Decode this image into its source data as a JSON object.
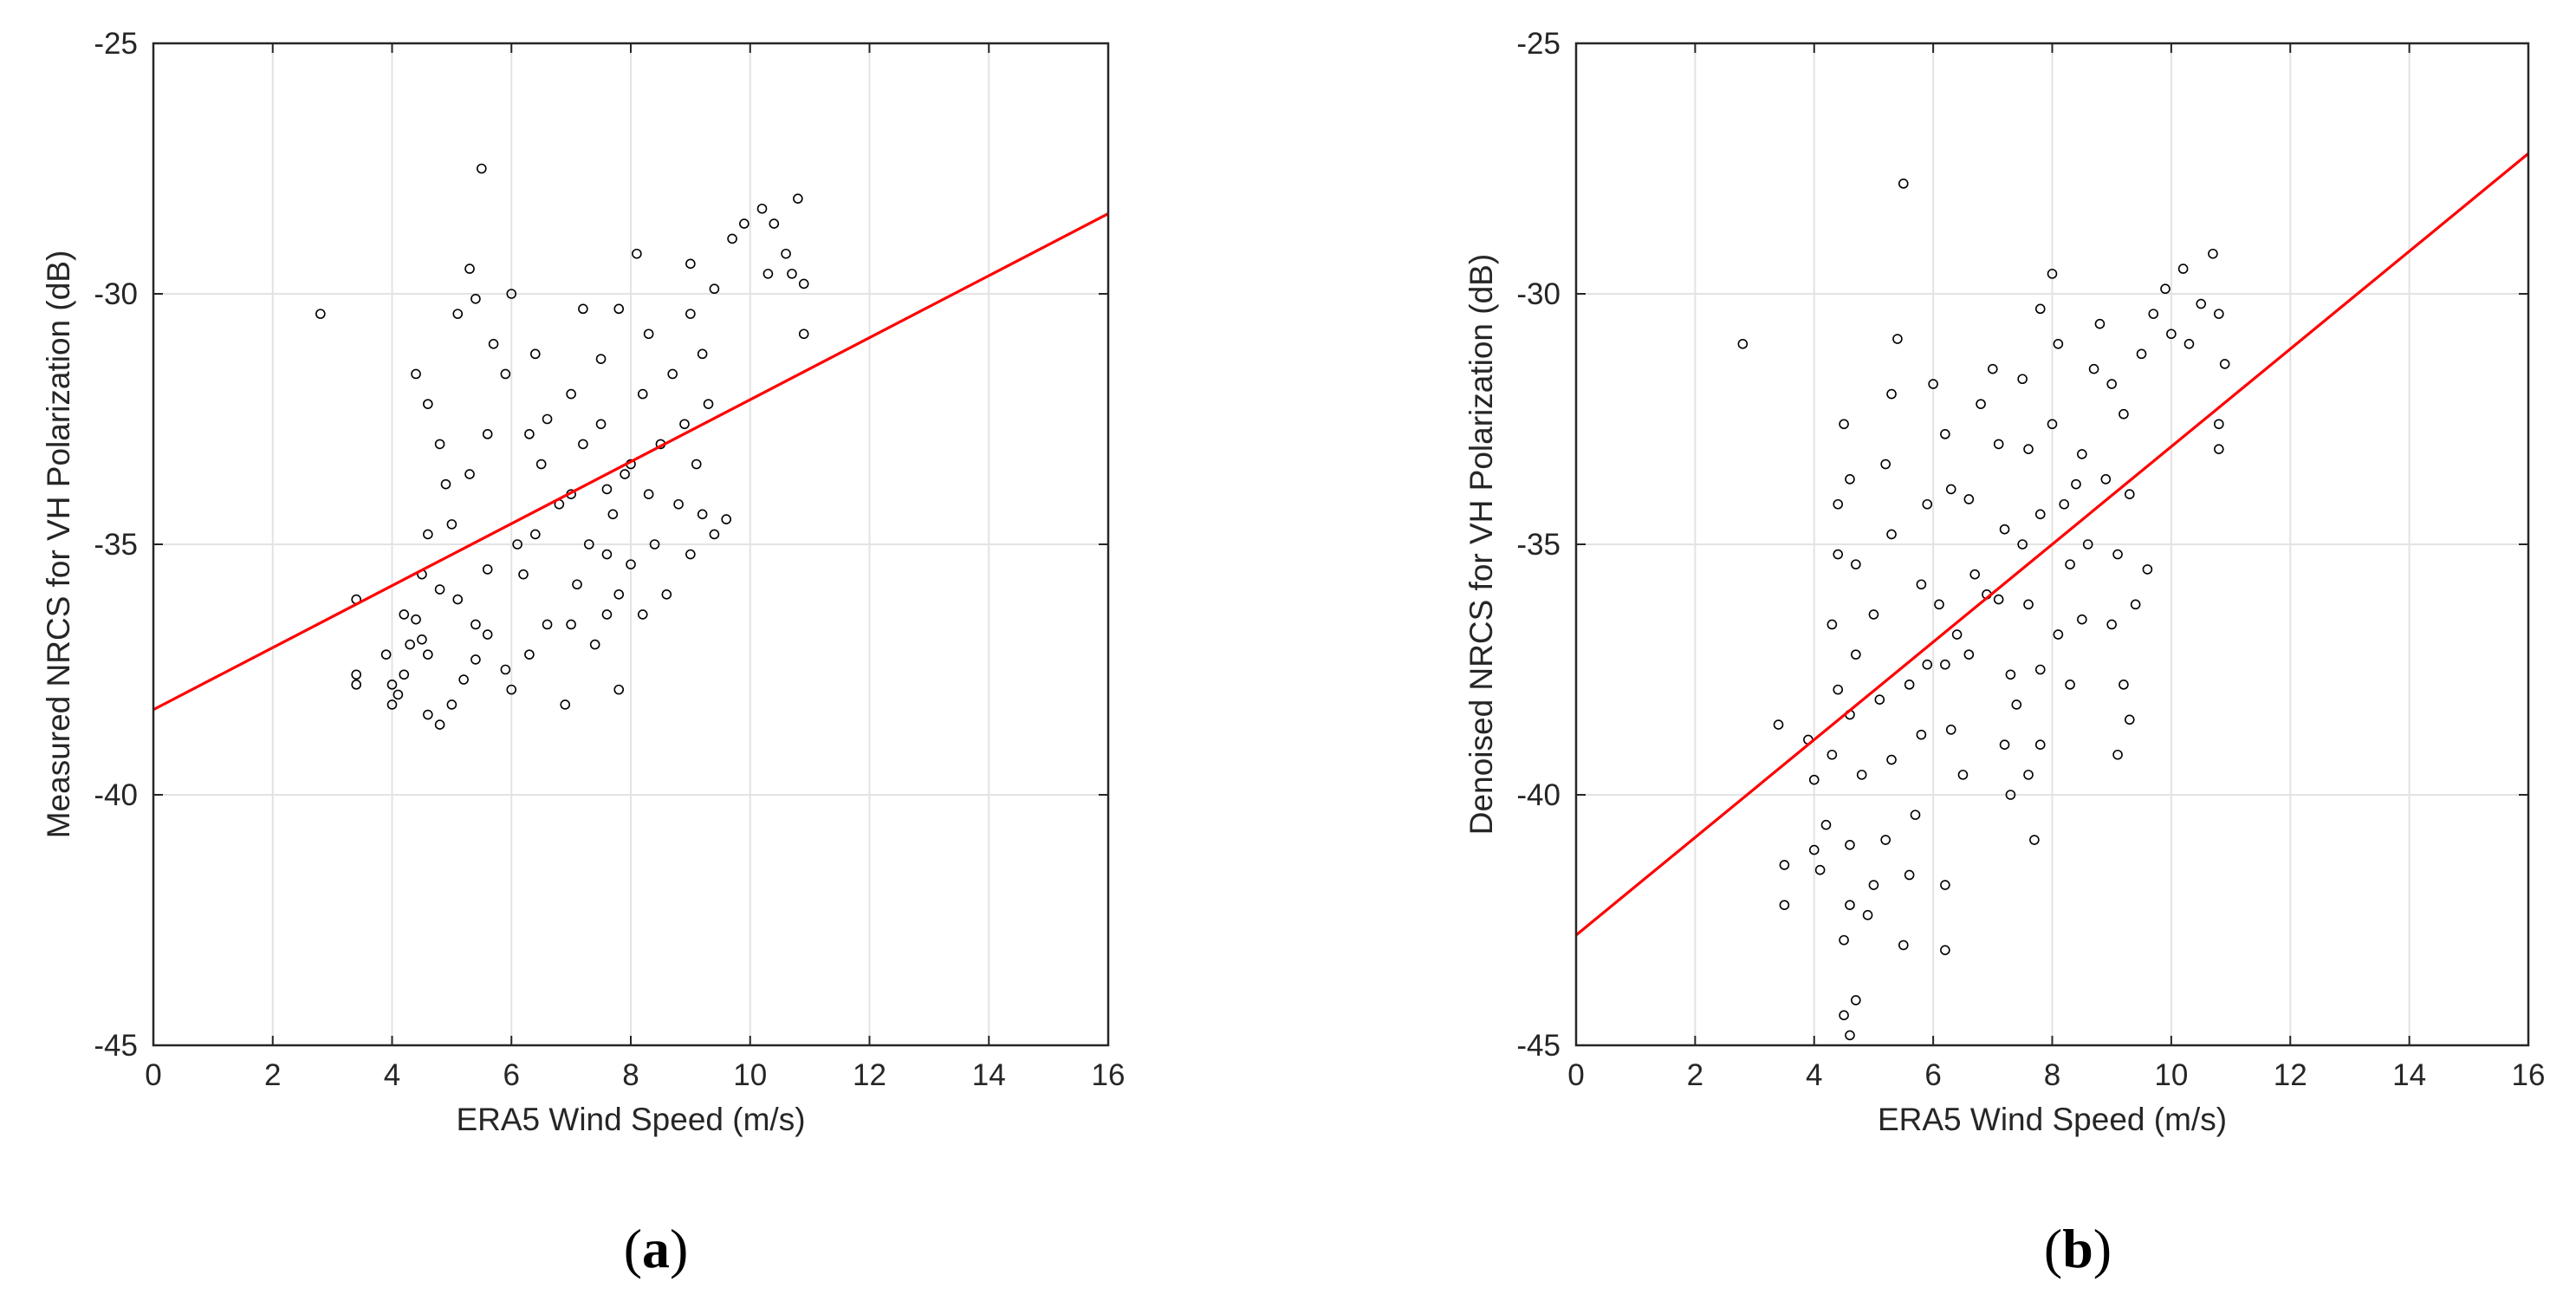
{
  "figure": {
    "panels": [
      {
        "label_open": "(",
        "label_letter": "a",
        "label_close": ")"
      },
      {
        "label_open": "(",
        "label_letter": "b",
        "label_close": ")"
      }
    ]
  },
  "chart_data": [
    {
      "type": "scatter",
      "title": "",
      "xlabel": "ERA5 Wind Speed (m/s)",
      "ylabel": "Measured NRCS for VH Polarization (dB)",
      "xlim": [
        0,
        16
      ],
      "ylim": [
        -45,
        -25
      ],
      "xticks": [
        0,
        2,
        4,
        6,
        8,
        10,
        12,
        14,
        16
      ],
      "yticks": [
        -45,
        -40,
        -35,
        -30,
        -25
      ],
      "grid": true,
      "marker": "open circle",
      "marker_color": "#000000",
      "fit_line": {
        "color": "#ff0000",
        "x": [
          0,
          16
        ],
        "y": [
          -38.3,
          -28.4
        ]
      },
      "series": [
        {
          "points": [
            [
              2.8,
              -30.4
            ],
            [
              5.5,
              -27.5
            ],
            [
              3.4,
              -36.1
            ],
            [
              3.4,
              -37.6
            ],
            [
              3.4,
              -37.8
            ],
            [
              3.9,
              -37.2
            ],
            [
              4.0,
              -37.8
            ],
            [
              4.0,
              -38.2
            ],
            [
              4.1,
              -38.0
            ],
            [
              4.2,
              -37.6
            ],
            [
              4.3,
              -37.0
            ],
            [
              4.2,
              -36.4
            ],
            [
              4.4,
              -36.5
            ],
            [
              4.5,
              -36.9
            ],
            [
              4.6,
              -37.2
            ],
            [
              4.6,
              -38.4
            ],
            [
              4.8,
              -38.6
            ],
            [
              5.0,
              -38.2
            ],
            [
              5.2,
              -37.7
            ],
            [
              5.4,
              -37.3
            ],
            [
              4.4,
              -31.6
            ],
            [
              4.6,
              -32.2
            ],
            [
              4.8,
              -33.0
            ],
            [
              4.9,
              -33.8
            ],
            [
              4.6,
              -34.8
            ],
            [
              4.5,
              -35.6
            ],
            [
              4.8,
              -35.9
            ],
            [
              5.1,
              -36.1
            ],
            [
              5.4,
              -36.6
            ],
            [
              5.6,
              -36.8
            ],
            [
              5.1,
              -30.4
            ],
            [
              5.3,
              -29.5
            ],
            [
              5.4,
              -30.1
            ],
            [
              5.7,
              -31.0
            ],
            [
              5.9,
              -31.6
            ],
            [
              5.6,
              -32.8
            ],
            [
              5.3,
              -33.6
            ],
            [
              5.0,
              -34.6
            ],
            [
              5.9,
              -37.5
            ],
            [
              6.0,
              -37.9
            ],
            [
              6.3,
              -37.2
            ],
            [
              6.6,
              -36.6
            ],
            [
              6.2,
              -35.6
            ],
            [
              6.4,
              -34.8
            ],
            [
              6.8,
              -34.2
            ],
            [
              6.3,
              -32.8
            ],
            [
              6.0,
              -30.0
            ],
            [
              6.4,
              -31.2
            ],
            [
              6.6,
              -32.5
            ],
            [
              7.0,
              -32.0
            ],
            [
              7.2,
              -33.0
            ],
            [
              7.0,
              -34.0
            ],
            [
              7.3,
              -35.0
            ],
            [
              7.1,
              -35.8
            ],
            [
              7.0,
              -36.6
            ],
            [
              6.9,
              -38.2
            ],
            [
              7.4,
              -37.0
            ],
            [
              7.6,
              -36.4
            ],
            [
              7.8,
              -37.9
            ],
            [
              7.8,
              -36.0
            ],
            [
              7.6,
              -35.2
            ],
            [
              7.7,
              -34.4
            ],
            [
              7.9,
              -33.6
            ],
            [
              7.5,
              -32.6
            ],
            [
              7.5,
              -31.3
            ],
            [
              7.8,
              -30.3
            ],
            [
              8.1,
              -29.2
            ],
            [
              8.3,
              -30.8
            ],
            [
              8.2,
              -32.0
            ],
            [
              8.0,
              -33.4
            ],
            [
              8.3,
              -34.0
            ],
            [
              8.4,
              -35.0
            ],
            [
              8.6,
              -36.0
            ],
            [
              8.2,
              -36.4
            ],
            [
              8.0,
              -35.4
            ],
            [
              8.5,
              -33.0
            ],
            [
              8.7,
              -31.6
            ],
            [
              9.0,
              -30.4
            ],
            [
              9.2,
              -31.2
            ],
            [
              8.9,
              -32.6
            ],
            [
              9.1,
              -33.4
            ],
            [
              9.2,
              -34.4
            ],
            [
              9.0,
              -35.2
            ],
            [
              9.3,
              -32.2
            ],
            [
              9.4,
              -34.8
            ],
            [
              9.6,
              -34.5
            ],
            [
              9.0,
              -29.4
            ],
            [
              9.4,
              -29.9
            ],
            [
              9.7,
              -28.9
            ],
            [
              9.9,
              -28.6
            ],
            [
              10.2,
              -28.3
            ],
            [
              10.4,
              -28.6
            ],
            [
              10.3,
              -29.6
            ],
            [
              10.6,
              -29.2
            ],
            [
              10.8,
              -28.1
            ],
            [
              10.9,
              -29.8
            ],
            [
              10.9,
              -30.8
            ],
            [
              10.7,
              -29.6
            ],
            [
              7.2,
              -30.3
            ],
            [
              5.6,
              -35.5
            ],
            [
              6.1,
              -35.0
            ],
            [
              6.5,
              -33.4
            ],
            [
              7.6,
              -33.9
            ],
            [
              8.8,
              -34.2
            ]
          ]
        }
      ]
    },
    {
      "type": "scatter",
      "title": "",
      "xlabel": "ERA5 Wind Speed (m/s)",
      "ylabel": "Denoised NRCS for VH Polarization (dB)",
      "xlim": [
        0,
        16
      ],
      "ylim": [
        -45,
        -25
      ],
      "xticks": [
        0,
        2,
        4,
        6,
        8,
        10,
        12,
        14,
        16
      ],
      "yticks": [
        -45,
        -40,
        -35,
        -30,
        -25
      ],
      "grid": true,
      "marker": "open circle",
      "marker_color": "#000000",
      "fit_line": {
        "color": "#ff0000",
        "x": [
          0,
          16
        ],
        "y": [
          -42.8,
          -27.2
        ]
      },
      "series": [
        {
          "points": [
            [
              2.8,
              -31.0
            ],
            [
              5.5,
              -27.8
            ],
            [
              3.4,
              -38.6
            ],
            [
              3.5,
              -41.4
            ],
            [
              3.5,
              -42.2
            ],
            [
              3.9,
              -38.9
            ],
            [
              4.0,
              -39.7
            ],
            [
              4.0,
              -41.1
            ],
            [
              4.1,
              -41.5
            ],
            [
              4.2,
              -40.6
            ],
            [
              4.3,
              -39.2
            ],
            [
              4.4,
              -37.9
            ],
            [
              4.3,
              -36.6
            ],
            [
              4.4,
              -35.2
            ],
            [
              4.4,
              -34.2
            ],
            [
              4.5,
              -32.6
            ],
            [
              4.6,
              -33.7
            ],
            [
              4.7,
              -35.4
            ],
            [
              4.7,
              -37.2
            ],
            [
              4.6,
              -38.4
            ],
            [
              4.6,
              -41.0
            ],
            [
              4.6,
              -42.2
            ],
            [
              4.5,
              -42.9
            ],
            [
              4.5,
              -44.4
            ],
            [
              4.6,
              -44.8
            ],
            [
              4.7,
              -44.1
            ],
            [
              4.9,
              -42.4
            ],
            [
              5.0,
              -41.8
            ],
            [
              5.2,
              -40.9
            ],
            [
              5.3,
              -39.3
            ],
            [
              5.1,
              -38.1
            ],
            [
              5.0,
              -36.4
            ],
            [
              5.3,
              -34.8
            ],
            [
              5.2,
              -33.4
            ],
            [
              5.3,
              -32.0
            ],
            [
              5.4,
              -30.9
            ],
            [
              5.5,
              -43.0
            ],
            [
              5.6,
              -41.6
            ],
            [
              5.7,
              -40.4
            ],
            [
              5.8,
              -38.8
            ],
            [
              5.9,
              -37.4
            ],
            [
              5.8,
              -35.8
            ],
            [
              5.9,
              -34.2
            ],
            [
              6.0,
              -31.8
            ],
            [
              6.2,
              -32.8
            ],
            [
              6.3,
              -33.9
            ],
            [
              6.1,
              -36.2
            ],
            [
              6.2,
              -37.4
            ],
            [
              6.3,
              -38.7
            ],
            [
              6.2,
              -41.8
            ],
            [
              6.2,
              -43.1
            ],
            [
              6.5,
              -39.6
            ],
            [
              6.6,
              -37.2
            ],
            [
              6.7,
              -35.6
            ],
            [
              6.6,
              -34.1
            ],
            [
              6.8,
              -32.2
            ],
            [
              7.0,
              -31.5
            ],
            [
              7.1,
              -33.0
            ],
            [
              7.2,
              -34.7
            ],
            [
              7.1,
              -36.1
            ],
            [
              7.3,
              -37.6
            ],
            [
              7.2,
              -39.0
            ],
            [
              7.4,
              -38.2
            ],
            [
              7.3,
              -40.0
            ],
            [
              7.6,
              -39.6
            ],
            [
              7.7,
              -40.9
            ],
            [
              7.8,
              -39.0
            ],
            [
              7.8,
              -37.5
            ],
            [
              7.6,
              -36.2
            ],
            [
              7.8,
              -34.4
            ],
            [
              7.6,
              -33.1
            ],
            [
              7.5,
              -31.7
            ],
            [
              7.8,
              -30.3
            ],
            [
              8.0,
              -29.6
            ],
            [
              8.1,
              -31.0
            ],
            [
              8.0,
              -32.6
            ],
            [
              8.2,
              -34.2
            ],
            [
              8.3,
              -35.4
            ],
            [
              8.1,
              -36.8
            ],
            [
              8.3,
              -37.8
            ],
            [
              8.5,
              -36.5
            ],
            [
              8.6,
              -35.0
            ],
            [
              8.5,
              -33.2
            ],
            [
              8.7,
              -31.5
            ],
            [
              8.8,
              -30.6
            ],
            [
              9.0,
              -31.8
            ],
            [
              8.9,
              -33.7
            ],
            [
              9.1,
              -35.2
            ],
            [
              9.0,
              -36.6
            ],
            [
              9.2,
              -37.8
            ],
            [
              9.1,
              -39.2
            ],
            [
              9.3,
              -38.5
            ],
            [
              9.4,
              -36.2
            ],
            [
              9.6,
              -35.5
            ],
            [
              9.3,
              -34.0
            ],
            [
              9.2,
              -32.4
            ],
            [
              9.5,
              -31.2
            ],
            [
              9.7,
              -30.4
            ],
            [
              9.9,
              -29.9
            ],
            [
              10.2,
              -29.5
            ],
            [
              10.0,
              -30.8
            ],
            [
              10.3,
              -31.0
            ],
            [
              10.5,
              -30.2
            ],
            [
              10.7,
              -29.2
            ],
            [
              10.8,
              -30.4
            ],
            [
              10.9,
              -31.4
            ],
            [
              10.8,
              -32.6
            ],
            [
              10.8,
              -33.1
            ],
            [
              6.9,
              -36.0
            ],
            [
              7.5,
              -35.0
            ],
            [
              8.4,
              -33.8
            ],
            [
              6.4,
              -36.8
            ],
            [
              5.6,
              -37.8
            ],
            [
              4.8,
              -39.6
            ]
          ]
        }
      ]
    }
  ]
}
